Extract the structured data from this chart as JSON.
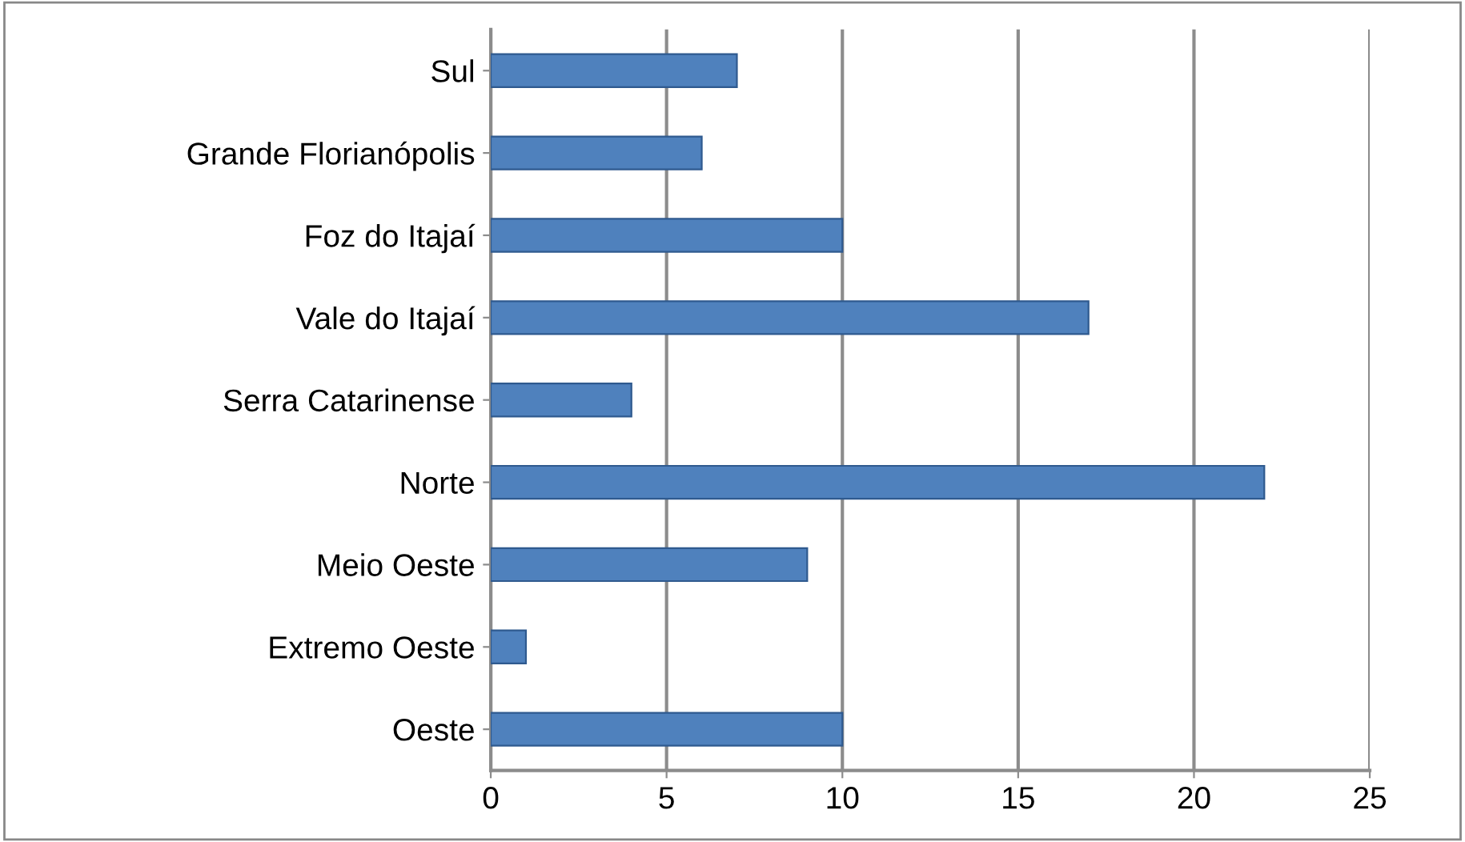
{
  "chart_data": {
    "type": "bar",
    "orientation": "horizontal",
    "categories": [
      "Sul",
      "Grande Florianópolis",
      "Foz do Itajaí",
      "Vale do Itajaí",
      "Serra Catarinense",
      "Norte",
      "Meio Oeste",
      "Extremo Oeste",
      "Oeste"
    ],
    "values": [
      7,
      6,
      10,
      17,
      4,
      22,
      9,
      1,
      10
    ],
    "color": "#4f81bd",
    "xlim": [
      0,
      25
    ],
    "xticks": [
      0,
      5,
      10,
      15,
      20,
      25
    ],
    "grid": "x",
    "legend": false
  }
}
